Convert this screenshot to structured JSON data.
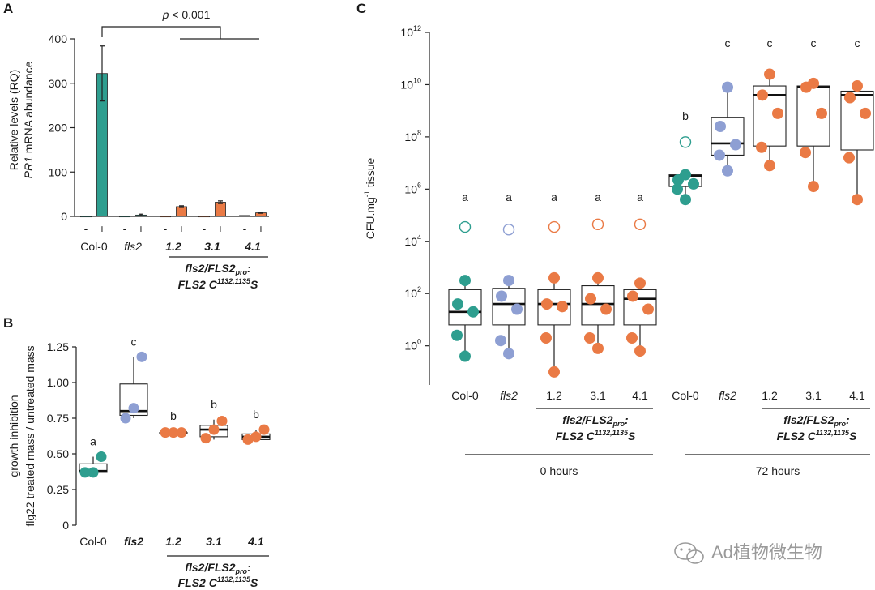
{
  "colors": {
    "teal": "#2e9e8f",
    "blue": "#8e9fd3",
    "orange": "#ea7a45",
    "axis": "#222222"
  },
  "watermark": {
    "icon": "wechat-icon",
    "text": "Ad植物微生物"
  },
  "chart_data": [
    {
      "id": "A",
      "panel_label": "A",
      "type": "bar",
      "title": "",
      "ylabel_line1": "Relative levels (RQ)",
      "ylabel_line2_italic": "PR1",
      "ylabel_line2_rest": " mRNA  abundance",
      "ylim": [
        0,
        400
      ],
      "yticks": [
        "0",
        "100",
        "200",
        "300",
        "400"
      ],
      "treatment_marks": [
        "-",
        "+"
      ],
      "significance": "p < 0.001",
      "significance_italic": "p",
      "significance_rest": " < 0.001",
      "groups": [
        {
          "label": "Col-0",
          "style": "normal",
          "color": "teal",
          "values": [
            1,
            322
          ],
          "errors": [
            0,
            62
          ]
        },
        {
          "label": "fls2",
          "style": "italic",
          "color": "teal",
          "values": [
            1,
            3
          ],
          "errors": [
            0,
            2
          ]
        },
        {
          "label": "1.2",
          "style": "bold-italic",
          "color": "orange",
          "values": [
            1,
            22
          ],
          "errors": [
            0,
            2
          ]
        },
        {
          "label": "3.1",
          "style": "bold-italic",
          "color": "orange",
          "values": [
            1,
            32
          ],
          "errors": [
            0,
            3
          ]
        },
        {
          "label": "4.1",
          "style": "bold-italic",
          "color": "orange",
          "values": [
            2,
            8
          ],
          "errors": [
            0,
            1
          ]
        }
      ],
      "genotype_line1": "fls2/FLS2",
      "genotype_line1_sub": "pro",
      "genotype_line1_end": ":",
      "genotype_line2": "FLS2 C",
      "genotype_line2_sup": "1132,1135",
      "genotype_line2_end": "S"
    },
    {
      "id": "B",
      "panel_label": "B",
      "type": "boxplot",
      "ylabel_line1": "growth inhibition",
      "ylabel_line2": "flg22 treated mass / untreated mass",
      "ylim": [
        0,
        1.25
      ],
      "yticks": [
        "0",
        "0.25",
        "0.50",
        "0.75",
        "1.00",
        "1.25"
      ],
      "groups": [
        {
          "label": "Col-0",
          "style": "normal",
          "color": "teal",
          "letter": "a",
          "q1": 0.37,
          "median": 0.38,
          "q3": 0.43,
          "whisker_low": 0.37,
          "whisker_high": 0.48,
          "points": [
            0.37,
            0.37,
            0.48
          ]
        },
        {
          "label": "fls2",
          "style": "bold-italic",
          "color": "blue",
          "letter": "c",
          "q1": 0.77,
          "median": 0.8,
          "q3": 0.99,
          "whisker_low": 0.75,
          "whisker_high": 1.18,
          "points": [
            0.75,
            0.82,
            1.18
          ]
        },
        {
          "label": "1.2",
          "style": "bold-italic",
          "color": "orange",
          "letter": "b",
          "q1": 0.65,
          "median": 0.65,
          "q3": 0.65,
          "whisker_low": 0.64,
          "whisker_high": 0.66,
          "points": [
            0.65,
            0.65,
            0.65
          ]
        },
        {
          "label": "3.1",
          "style": "bold-italic",
          "color": "orange",
          "letter": "b",
          "q1": 0.62,
          "median": 0.67,
          "q3": 0.7,
          "whisker_low": 0.6,
          "whisker_high": 0.74,
          "points": [
            0.61,
            0.67,
            0.73
          ]
        },
        {
          "label": "4.1",
          "style": "bold-italic",
          "color": "orange",
          "letter": "b",
          "q1": 0.6,
          "median": 0.62,
          "q3": 0.64,
          "whisker_low": 0.59,
          "whisker_high": 0.67,
          "points": [
            0.6,
            0.62,
            0.67
          ]
        }
      ],
      "genotype_line1": "fls2/FLS2",
      "genotype_line1_sub": "pro",
      "genotype_line1_end": ":",
      "genotype_line2": "FLS2 C",
      "genotype_line2_sup": "1132,1135",
      "genotype_line2_end": "S"
    },
    {
      "id": "C",
      "panel_label": "C",
      "type": "boxplot-log",
      "ylabel_main": "CFU.mg",
      "ylabel_sup": "-1",
      "ylabel_end": " tissue",
      "log_range": [
        -1.5,
        12
      ],
      "ytick_exponents": [
        "0",
        "2",
        "4",
        "6",
        "8",
        "10",
        "12"
      ],
      "ytick_base": "10",
      "time_groups": [
        "0 hours",
        "72 hours"
      ],
      "groups": [
        {
          "label": "Col-0",
          "style": "normal",
          "color": "teal",
          "time": 0,
          "letter": "a",
          "q1": 0.8,
          "median": 1.3,
          "q3": 2.15,
          "whisker_low": -0.4,
          "whisker_high": 2.5,
          "points": [
            2.5,
            1.6,
            1.3,
            0.4,
            -0.4
          ],
          "outlier": 4.55
        },
        {
          "label": "fls2",
          "style": "italic",
          "color": "blue",
          "time": 0,
          "letter": "a",
          "q1": 0.8,
          "median": 1.6,
          "q3": 2.2,
          "whisker_low": -0.3,
          "whisker_high": 2.5,
          "points": [
            2.5,
            1.9,
            1.4,
            0.2,
            -0.3
          ],
          "outlier": 4.45
        },
        {
          "label": "1.2",
          "style": "normal",
          "color": "orange",
          "time": 0,
          "letter": "a",
          "q1": 0.8,
          "median": 1.6,
          "q3": 2.15,
          "whisker_low": -1.0,
          "whisker_high": 2.6,
          "points": [
            2.6,
            1.6,
            1.5,
            0.3,
            -1.0
          ],
          "outlier": 4.55
        },
        {
          "label": "3.1",
          "style": "normal",
          "color": "orange",
          "time": 0,
          "letter": "a",
          "q1": 0.8,
          "median": 1.6,
          "q3": 2.3,
          "whisker_low": -0.1,
          "whisker_high": 2.6,
          "points": [
            2.6,
            1.8,
            1.4,
            0.3,
            -0.1
          ],
          "outlier": 4.65
        },
        {
          "label": "4.1",
          "style": "normal",
          "color": "orange",
          "time": 0,
          "letter": "a",
          "q1": 0.8,
          "median": 1.8,
          "q3": 2.15,
          "whisker_low": -0.2,
          "whisker_high": 2.4,
          "points": [
            2.4,
            1.9,
            1.4,
            0.3,
            -0.2
          ],
          "outlier": 4.65
        },
        {
          "label": "Col-0",
          "style": "normal",
          "color": "teal",
          "time": 1,
          "letter": "b",
          "q1": 6.1,
          "median": 6.5,
          "q3": 6.55,
          "whisker_low": 5.6,
          "whisker_high": 6.6,
          "points": [
            6.55,
            6.35,
            6.2,
            6.0,
            5.6
          ],
          "outlier": 7.8
        },
        {
          "label": "fls2",
          "style": "italic",
          "color": "blue",
          "time": 1,
          "letter": "c",
          "q1": 7.3,
          "median": 7.75,
          "q3": 8.75,
          "whisker_low": 6.7,
          "whisker_high": 9.9,
          "points": [
            9.9,
            8.4,
            7.7,
            7.3,
            6.7
          ]
        },
        {
          "label": "1.2",
          "style": "normal",
          "color": "orange",
          "time": 1,
          "letter": "c",
          "q1": 7.65,
          "median": 9.6,
          "q3": 9.95,
          "whisker_low": 6.9,
          "whisker_high": 10.4,
          "points": [
            10.4,
            9.6,
            8.9,
            7.6,
            6.9
          ]
        },
        {
          "label": "3.1",
          "style": "normal",
          "color": "orange",
          "time": 1,
          "letter": "c",
          "q1": 7.65,
          "median": 9.9,
          "q3": 9.95,
          "whisker_low": 6.1,
          "whisker_high": 10.05,
          "points": [
            10.05,
            9.9,
            8.9,
            7.4,
            6.1
          ]
        },
        {
          "label": "4.1",
          "style": "normal",
          "color": "orange",
          "time": 1,
          "letter": "c",
          "q1": 7.5,
          "median": 9.6,
          "q3": 9.75,
          "whisker_low": 5.6,
          "whisker_high": 9.95,
          "points": [
            9.95,
            9.5,
            8.9,
            7.2,
            5.6
          ]
        }
      ],
      "genotype_line1": "fls2/FLS2",
      "genotype_line1_sub": "pro",
      "genotype_line1_end": ":",
      "genotype_line2": "FLS2 C",
      "genotype_line2_sup": "1132,1135",
      "genotype_line2_end": "S"
    }
  ]
}
